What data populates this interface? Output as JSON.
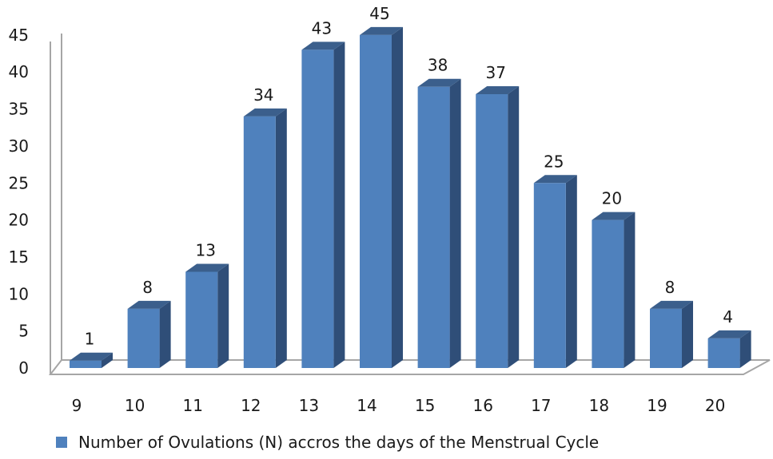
{
  "chart_data": {
    "type": "bar",
    "style": "3d-column",
    "categories": [
      "9",
      "10",
      "11",
      "12",
      "13",
      "14",
      "15",
      "16",
      "17",
      "18",
      "19",
      "20"
    ],
    "series": [
      {
        "name": "Number of Ovulations (N) accros the days of the Menstrual Cycle",
        "values": [
          1,
          8,
          13,
          34,
          43,
          45,
          38,
          37,
          25,
          20,
          8,
          4
        ]
      }
    ],
    "yticks": [
      "0",
      "5",
      "10",
      "15",
      "20",
      "25",
      "30",
      "35",
      "40",
      "45"
    ],
    "ylim": [
      0,
      45
    ],
    "data_labels": true,
    "grid": false,
    "legend_position": "bottom",
    "colors": {
      "bar_front": "#4f81bd",
      "bar_top": "#3b5f8c",
      "bar_side": "#2f4e78",
      "axis": "#a6a6a6",
      "floor": "#ffffff"
    }
  }
}
